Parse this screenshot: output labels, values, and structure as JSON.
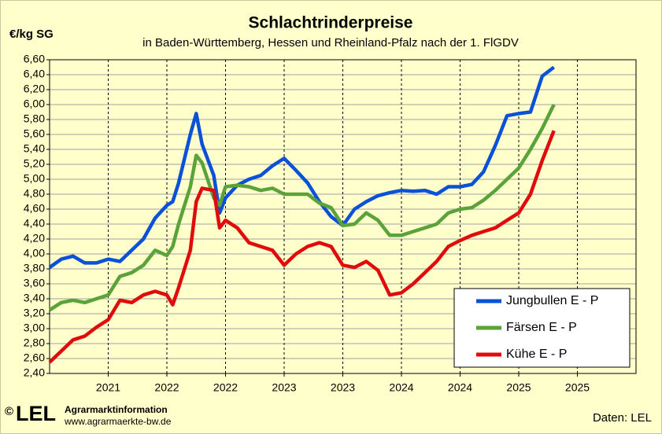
{
  "chart_data": {
    "type": "line",
    "title": "Schlachtrinderpreise",
    "subtitle": "in Baden-Württemberg, Hessen und Rheinland-Pfalz  nach der 1. FlGDV",
    "y_label": "€/kg SG",
    "logo": {
      "copyright": "©",
      "name": "LEL",
      "line1": "Agrarmarktinformation",
      "line2": "www.agrarmaerkte-bw.de"
    },
    "source": "Daten: LEL",
    "legend": "lower right",
    "grid": true,
    "xlim": [
      0,
      100
    ],
    "xticks": [
      {
        "value": 10,
        "label": "2021"
      },
      {
        "value": 20,
        "label": "2022"
      },
      {
        "value": 30,
        "label": "2022"
      },
      {
        "value": 40,
        "label": "2023"
      },
      {
        "value": 50,
        "label": "2023"
      },
      {
        "value": 60,
        "label": "2024"
      },
      {
        "value": 70,
        "label": "2024"
      },
      {
        "value": 80,
        "label": "2025"
      },
      {
        "value": 90,
        "label": "2025"
      }
    ],
    "ylim": [
      2.4,
      6.6
    ],
    "yticks": [
      {
        "value": 2.4,
        "label": "2,40"
      },
      {
        "value": 2.6,
        "label": "2,60"
      },
      {
        "value": 2.8,
        "label": "2,80"
      },
      {
        "value": 3.0,
        "label": "3,00"
      },
      {
        "value": 3.2,
        "label": "3,20"
      },
      {
        "value": 3.4,
        "label": "3,40"
      },
      {
        "value": 3.6,
        "label": "3,60"
      },
      {
        "value": 3.8,
        "label": "3,80"
      },
      {
        "value": 4.0,
        "label": "4,00"
      },
      {
        "value": 4.2,
        "label": "4,20"
      },
      {
        "value": 4.4,
        "label": "4,40"
      },
      {
        "value": 4.6,
        "label": "4,60"
      },
      {
        "value": 4.8,
        "label": "4,80"
      },
      {
        "value": 5.0,
        "label": "5,00"
      },
      {
        "value": 5.2,
        "label": "5,20"
      },
      {
        "value": 5.4,
        "label": "5,40"
      },
      {
        "value": 5.6,
        "label": "5,60"
      },
      {
        "value": 5.8,
        "label": "5,80"
      },
      {
        "value": 6.0,
        "label": "6,00"
      },
      {
        "value": 6.2,
        "label": "6,20"
      },
      {
        "value": 6.4,
        "label": "6,40"
      },
      {
        "value": 6.6,
        "label": "6,60"
      }
    ],
    "x": [
      0,
      2,
      4,
      6,
      8,
      10,
      12,
      14,
      16,
      18,
      20,
      21,
      22,
      24,
      25,
      26,
      28,
      29,
      30,
      32,
      34,
      36,
      38,
      40,
      42,
      44,
      46,
      48,
      50,
      52,
      54,
      56,
      58,
      60,
      62,
      64,
      66,
      68,
      70,
      72,
      74,
      76,
      78,
      80,
      82,
      84,
      86
    ],
    "series": [
      {
        "name": "Jungbullen E - P",
        "color": "#0a50d8",
        "values": [
          3.82,
          3.93,
          3.97,
          3.88,
          3.88,
          3.93,
          3.9,
          4.05,
          4.2,
          4.48,
          4.65,
          4.7,
          4.95,
          5.6,
          5.88,
          5.47,
          5.05,
          4.55,
          4.75,
          4.92,
          5.0,
          5.05,
          5.18,
          5.28,
          5.12,
          4.95,
          4.7,
          4.5,
          4.38,
          4.6,
          4.7,
          4.78,
          4.82,
          4.85,
          4.84,
          4.85,
          4.8,
          4.9,
          4.9,
          4.93,
          5.1,
          5.45,
          5.85,
          5.88,
          5.9,
          6.38,
          6.5
        ]
      },
      {
        "name": "Färsen E - P",
        "color": "#5aa23a",
        "values": [
          3.25,
          3.35,
          3.38,
          3.35,
          3.4,
          3.45,
          3.7,
          3.75,
          3.85,
          4.05,
          3.98,
          4.1,
          4.4,
          4.9,
          5.32,
          5.22,
          4.75,
          4.65,
          4.9,
          4.92,
          4.9,
          4.85,
          4.88,
          4.8,
          4.8,
          4.8,
          4.68,
          4.62,
          4.38,
          4.4,
          4.55,
          4.45,
          4.25,
          4.25,
          4.3,
          4.35,
          4.4,
          4.55,
          4.6,
          4.62,
          4.72,
          4.85,
          5.0,
          5.15,
          5.4,
          5.68,
          6.0
        ]
      },
      {
        "name": "Kühe E - P",
        "color": "#e00c0c",
        "values": [
          2.55,
          2.7,
          2.85,
          2.9,
          3.02,
          3.12,
          3.38,
          3.35,
          3.45,
          3.5,
          3.45,
          3.32,
          3.55,
          4.05,
          4.7,
          4.88,
          4.85,
          4.35,
          4.45,
          4.35,
          4.15,
          4.1,
          4.05,
          3.85,
          4.0,
          4.1,
          4.15,
          4.1,
          3.85,
          3.82,
          3.9,
          3.78,
          3.45,
          3.48,
          3.6,
          3.75,
          3.9,
          4.1,
          4.18,
          4.25,
          4.3,
          4.35,
          4.45,
          4.55,
          4.8,
          5.25,
          5.65
        ]
      }
    ]
  }
}
